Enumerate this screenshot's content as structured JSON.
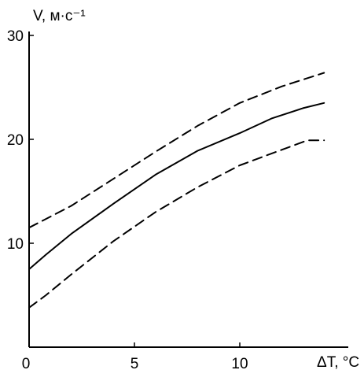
{
  "chart_data": {
    "type": "line",
    "xlabel": "ΔT, °C",
    "ylabel": "V, м·c⁻¹",
    "xlim": [
      0,
      15
    ],
    "ylim": [
      0,
      30
    ],
    "x_ticks": [
      "0",
      "5",
      "10"
    ],
    "y_ticks": [
      "10",
      "20",
      "30"
    ],
    "grid": false,
    "legend": "none",
    "series": [
      {
        "style": "dashed",
        "x": [
          0,
          2,
          4,
          6,
          8,
          10,
          12,
          14
        ],
        "y": [
          11.5,
          13.6,
          16.2,
          18.8,
          21.3,
          23.5,
          25.1,
          26.4
        ]
      },
      {
        "style": "solid",
        "x": [
          0,
          0.8,
          2,
          4,
          6,
          8,
          10,
          11.5,
          13,
          14
        ],
        "y": [
          7.5,
          8.9,
          10.9,
          13.8,
          16.6,
          18.9,
          20.6,
          22.0,
          23.0,
          23.5
        ]
      },
      {
        "style": "dashed",
        "x": [
          0,
          0.8,
          2,
          4,
          6,
          8,
          10,
          12,
          13.2,
          14
        ],
        "y": [
          3.8,
          5.0,
          7.0,
          10.2,
          13.0,
          15.4,
          17.5,
          19.0,
          19.9,
          19.9
        ]
      }
    ]
  }
}
